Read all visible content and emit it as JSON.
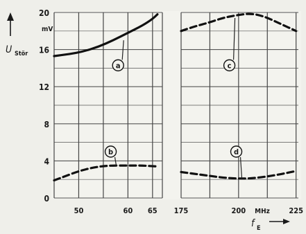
{
  "chart_data": {
    "type": "line",
    "ylabel": "U",
    "ylabel_subscript": "Stör",
    "yunit": "mV",
    "xlabel": "f",
    "xlabel_subscript": "E",
    "xunit": "MHz",
    "ylim": [
      0,
      20
    ],
    "yticks": [
      0,
      4,
      8,
      12,
      16,
      20
    ],
    "grid": true,
    "panels": [
      {
        "name": "left",
        "xlim": [
          45,
          67
        ],
        "xticks": [
          50,
          60,
          65
        ],
        "grid_x": [
          45,
          50,
          55,
          60,
          65,
          67
        ]
      },
      {
        "name": "right",
        "xlim": [
          175,
          226
        ],
        "xticks": [
          175,
          200,
          225
        ],
        "grid_x": [
          175,
          187.5,
          200,
          212.5,
          225
        ]
      }
    ],
    "series": [
      {
        "label": "a",
        "panel": "left",
        "style": "solid",
        "x": [
          45,
          48,
          51,
          54,
          57,
          60,
          63,
          65,
          66
        ],
        "y": [
          15.3,
          15.5,
          15.8,
          16.3,
          17.0,
          17.8,
          18.6,
          19.3,
          19.8
        ],
        "label_at": [
          58,
          14.3
        ]
      },
      {
        "label": "b",
        "panel": "left",
        "style": "dashed",
        "x": [
          45,
          47,
          50,
          53,
          56,
          60,
          63,
          66
        ],
        "y": [
          1.9,
          2.3,
          2.9,
          3.3,
          3.5,
          3.5,
          3.5,
          3.4
        ],
        "label_at": [
          56.5,
          5.0
        ]
      },
      {
        "label": "c",
        "panel": "right",
        "style": "dashed",
        "x": [
          175,
          181,
          187,
          193,
          199,
          205,
          211,
          218,
          225
        ],
        "y": [
          18.0,
          18.5,
          18.9,
          19.4,
          19.7,
          19.9,
          19.6,
          18.8,
          18.0
        ],
        "label_at": [
          196,
          14.3
        ]
      },
      {
        "label": "d",
        "panel": "right",
        "style": "dashed",
        "x": [
          175,
          181,
          187,
          193,
          199,
          205,
          212,
          219,
          225
        ],
        "y": [
          2.8,
          2.6,
          2.4,
          2.2,
          2.1,
          2.1,
          2.3,
          2.6,
          2.9
        ],
        "label_at": [
          199,
          5.0
        ]
      }
    ]
  }
}
